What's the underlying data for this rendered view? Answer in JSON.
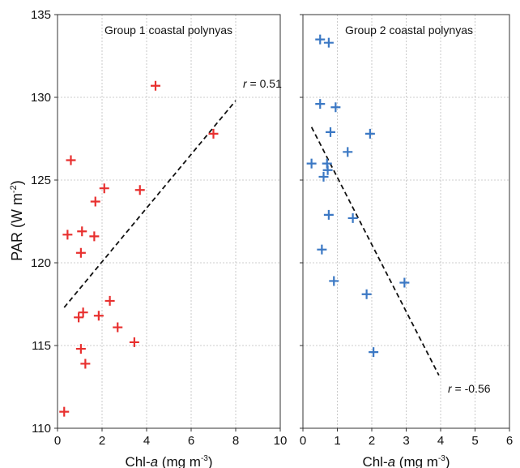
{
  "figure": {
    "ylabel": "PAR (W m",
    "ylabel_sup": "-2",
    "ylabel_close": ")"
  },
  "chart_data": [
    {
      "type": "scatter",
      "title": "Group 1 coastal polynyas",
      "xlabel_pre": "Chl-",
      "xlabel_ital": "a",
      "xlabel_post": " (mg m",
      "xlabel_sup": "-3",
      "xlabel_close": ")",
      "ylabel": "PAR (W m-2)",
      "xlim": [
        0,
        10
      ],
      "ylim": [
        110,
        135
      ],
      "xticks": [
        0,
        2,
        4,
        6,
        8,
        10
      ],
      "yticks": [
        110,
        115,
        120,
        125,
        130,
        135
      ],
      "grid": true,
      "marker": "+",
      "color": "#e8302f",
      "x": [
        0.3,
        0.6,
        0.45,
        1.1,
        1.05,
        0.95,
        1.15,
        1.05,
        1.25,
        1.7,
        1.65,
        2.1,
        2.35,
        1.85,
        2.7,
        3.45,
        3.7,
        4.4,
        7.0
      ],
      "y": [
        111.0,
        126.2,
        121.7,
        121.9,
        120.6,
        116.7,
        117.0,
        114.8,
        113.9,
        123.7,
        121.6,
        124.5,
        117.7,
        116.8,
        116.1,
        115.2,
        124.4,
        130.7,
        127.8
      ],
      "fit": {
        "x": [
          0.3,
          8.0
        ],
        "y": [
          117.3,
          129.8
        ],
        "style": "dashed"
      },
      "annotation": {
        "r_label": "r",
        "text": " = 0.51"
      }
    },
    {
      "type": "scatter",
      "title": "Group 2 coastal polynyas",
      "xlabel_pre": "Chl-",
      "xlabel_ital": "a",
      "xlabel_post": " (mg m",
      "xlabel_sup": "-3",
      "xlabel_close": ")",
      "ylabel": "PAR (W m-2)",
      "xlim": [
        0,
        6
      ],
      "ylim": [
        110,
        135
      ],
      "xticks": [
        0,
        1,
        2,
        3,
        4,
        5,
        6
      ],
      "yticks": [
        110,
        115,
        120,
        125,
        130,
        135
      ],
      "grid": true,
      "marker": "+",
      "color": "#3b78c4",
      "x": [
        0.5,
        0.75,
        0.5,
        0.95,
        0.8,
        1.95,
        1.3,
        0.25,
        0.7,
        0.72,
        0.6,
        0.75,
        1.45,
        0.55,
        0.9,
        1.85,
        2.95,
        2.05
      ],
      "y": [
        133.5,
        133.3,
        129.6,
        129.4,
        127.9,
        127.8,
        126.7,
        126.0,
        126.0,
        125.6,
        125.2,
        122.9,
        122.7,
        120.8,
        118.9,
        118.1,
        118.8,
        114.6
      ],
      "fit": {
        "x": [
          0.25,
          3.95
        ],
        "y": [
          128.2,
          113.2
        ],
        "style": "dashed"
      },
      "annotation": {
        "r_label": "r",
        "text": " = -0.56"
      }
    }
  ]
}
